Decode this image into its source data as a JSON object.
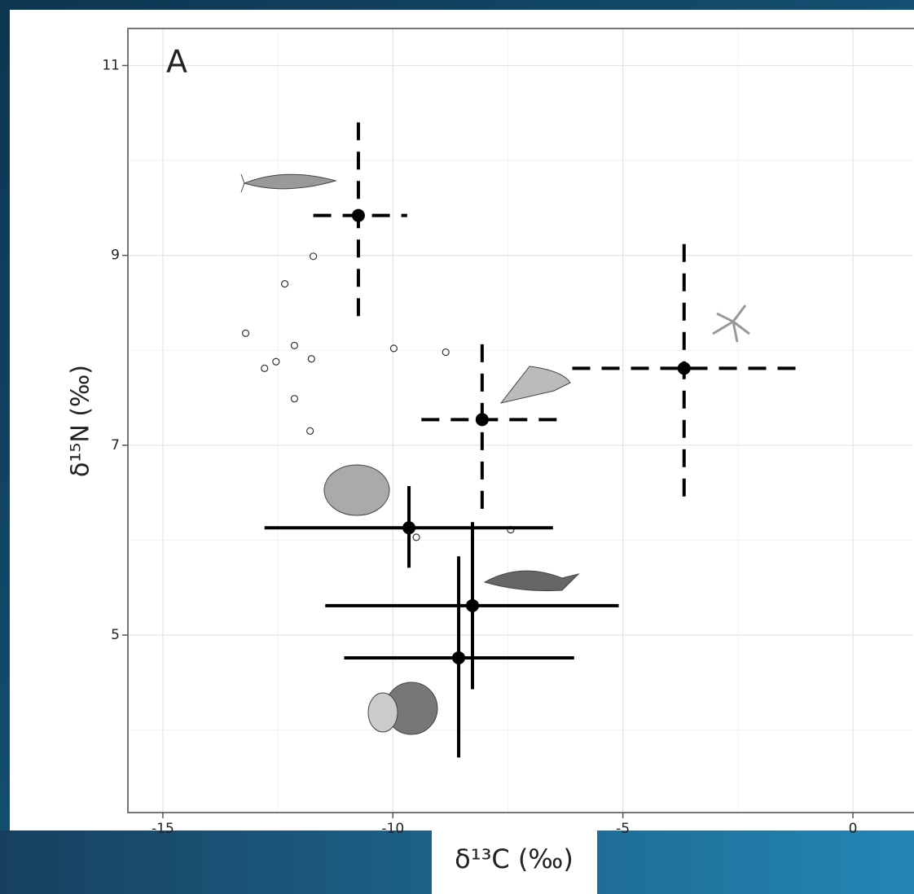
{
  "chart_data": {
    "type": "errorbar",
    "panel_label": "A",
    "xlabel": "δ¹³C (‰)",
    "ylabel": "δ¹⁵N (‰)",
    "xlim": [
      -15.76,
      1.31
    ],
    "ylim": [
      3.13,
      11.39
    ],
    "xticks": [
      -15,
      -10,
      -5,
      0
    ],
    "yticks": [
      5,
      7,
      9,
      11
    ],
    "x_minor_grid": [
      -12.5,
      -7.5,
      -2.5
    ],
    "y_minor_grid": [
      4,
      6,
      8,
      10
    ],
    "grid": true,
    "points": {
      "x": [
        -11.73,
        -12.35,
        -13.2,
        -12.14,
        -12.54,
        -11.77,
        -12.79,
        -9.98,
        -8.85,
        -12.14,
        -11.8,
        -9.49,
        -7.44
      ],
      "y": [
        8.99,
        8.7,
        8.18,
        8.05,
        7.88,
        7.91,
        7.81,
        8.02,
        7.98,
        7.49,
        7.15,
        6.03,
        6.11
      ]
    },
    "errorbars": [
      {
        "x": -10.75,
        "y": 9.42,
        "xmin": -11.73,
        "xmax": -9.69,
        "ymin": 8.36,
        "ymax": 10.4,
        "style": "dashed"
      },
      {
        "x": -8.06,
        "y": 7.27,
        "xmin": -9.38,
        "xmax": -6.41,
        "ymin": 6.33,
        "ymax": 8.07,
        "style": "dashed"
      },
      {
        "x": -3.67,
        "y": 7.81,
        "xmin": -6.1,
        "xmax": -1.13,
        "ymin": 6.46,
        "ymax": 9.14,
        "style": "dashed"
      },
      {
        "x": -9.65,
        "y": 6.13,
        "xmin": -12.79,
        "xmax": -6.52,
        "ymin": 5.71,
        "ymax": 6.57,
        "style": "solid"
      },
      {
        "x": -8.27,
        "y": 5.31,
        "xmin": -11.47,
        "xmax": -5.09,
        "ymin": 4.43,
        "ymax": 6.19,
        "style": "solid"
      },
      {
        "x": -8.57,
        "y": 4.76,
        "xmin": -11.06,
        "xmax": -6.06,
        "ymin": 3.71,
        "ymax": 5.83,
        "style": "solid"
      }
    ],
    "color": "#000000"
  }
}
